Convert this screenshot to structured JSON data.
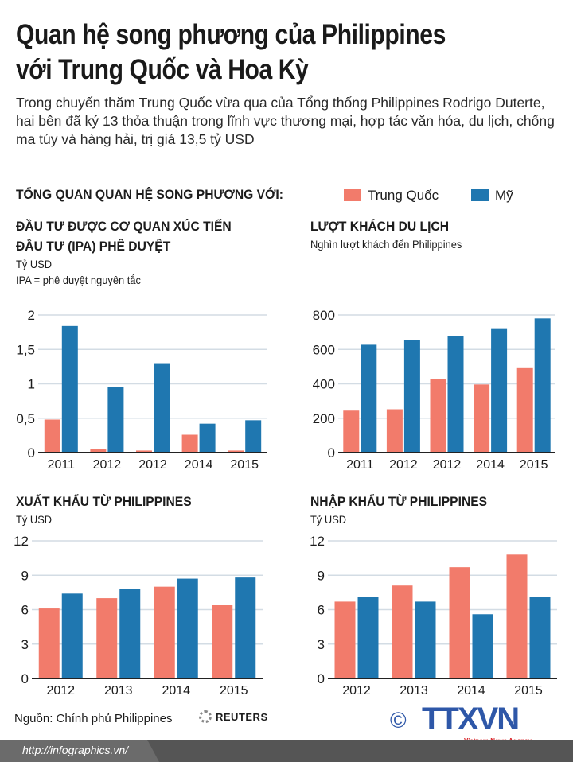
{
  "header": {
    "title_line1": "Quan hệ song phương của Philippines",
    "title_line2": "với Trung Quốc và Hoa Kỳ",
    "subtitle": "Trong chuyến thăm Trung Quốc vừa qua của Tổng thống Philippines Rodrigo Duterte, hai bên đã ký 13 thỏa thuận trong lĩnh vực thương mại, hợp tác văn hóa, du lịch, chống ma túy và hàng hải, trị giá 13,5 tỷ USD"
  },
  "overview_label": "TỔNG QUAN QUAN HỆ SONG PHƯƠNG VỚI:",
  "legend": [
    {
      "name": "Trung Quốc",
      "color": "#f27b6b"
    },
    {
      "name": "Mỹ",
      "color": "#1f77b0"
    }
  ],
  "chart_data": [
    {
      "type": "bar",
      "title": "ĐẦU TƯ ĐƯỢC CƠ QUAN XÚC TIẾN ĐẦU TƯ (IPA) PHÊ DUYỆT",
      "title_line1": "ĐẦU TƯ ĐƯỢC CƠ QUAN XÚC TIẾN",
      "title_line2": "ĐẦU TƯ (IPA) PHÊ DUYỆT",
      "ylabel": "Tỷ USD",
      "note": "IPA = phê duyệt nguyên tắc",
      "categories": [
        "2011",
        "2012",
        "2012",
        "2014",
        "2015"
      ],
      "series": [
        {
          "name": "Trung Quốc",
          "values": [
            0.48,
            0.05,
            0.03,
            0.26,
            0.03
          ]
        },
        {
          "name": "Mỹ",
          "values": [
            1.84,
            0.95,
            1.3,
            0.42,
            0.47
          ]
        }
      ],
      "ylim": [
        0,
        2
      ],
      "yticks": [
        0,
        0.5,
        1,
        1.5,
        2
      ],
      "ytick_labels": [
        "0",
        "0,5",
        "1",
        "1,5",
        "2"
      ],
      "grid": true
    },
    {
      "type": "bar",
      "title": "LƯỢT KHÁCH DU LỊCH",
      "ylabel": "Nghìn lượt khách đến Philippines",
      "categories": [
        "2011",
        "2012",
        "2012",
        "2014",
        "2015"
      ],
      "series": [
        {
          "name": "Trung Quốc",
          "values": [
            244,
            252,
            427,
            396,
            491
          ]
        },
        {
          "name": "Mỹ",
          "values": [
            627,
            653,
            676,
            723,
            780
          ]
        }
      ],
      "ylim": [
        0,
        800
      ],
      "yticks": [
        0,
        200,
        400,
        600,
        800
      ],
      "ytick_labels": [
        "0",
        "200",
        "400",
        "600",
        "800"
      ],
      "grid": true
    },
    {
      "type": "bar",
      "title": "XUẤT KHẨU TỪ PHILIPPINES",
      "ylabel": "Tỷ USD",
      "categories": [
        "2012",
        "2013",
        "2014",
        "2015"
      ],
      "series": [
        {
          "name": "Trung Quốc",
          "values": [
            6.1,
            7.0,
            8.0,
            6.4
          ]
        },
        {
          "name": "Mỹ",
          "values": [
            7.4,
            7.8,
            8.7,
            8.8
          ]
        }
      ],
      "ylim": [
        0,
        12
      ],
      "yticks": [
        0,
        3,
        6,
        9,
        12
      ],
      "ytick_labels": [
        "0",
        "3",
        "6",
        "9",
        "12"
      ],
      "grid": true
    },
    {
      "type": "bar",
      "title": "NHẬP KHẨU TỪ PHILIPPINES",
      "ylabel": "Tỷ USD",
      "categories": [
        "2012",
        "2013",
        "2014",
        "2015"
      ],
      "series": [
        {
          "name": "Trung Quốc",
          "values": [
            6.7,
            8.1,
            9.7,
            10.8
          ]
        },
        {
          "name": "Mỹ",
          "values": [
            7.1,
            6.7,
            5.6,
            7.1
          ]
        }
      ],
      "ylim": [
        0,
        12
      ],
      "yticks": [
        0,
        3,
        6,
        9,
        12
      ],
      "ytick_labels": [
        "0",
        "3",
        "6",
        "9",
        "12"
      ],
      "grid": true
    }
  ],
  "footer": {
    "source": "Nguồn: Chính phủ Philippines",
    "reuters": "REUTERS",
    "copyright": "©",
    "agency_logo": "TTXVN",
    "agency_tagline": "Vietnam News Agency",
    "url": "http://infographics.vn/"
  }
}
